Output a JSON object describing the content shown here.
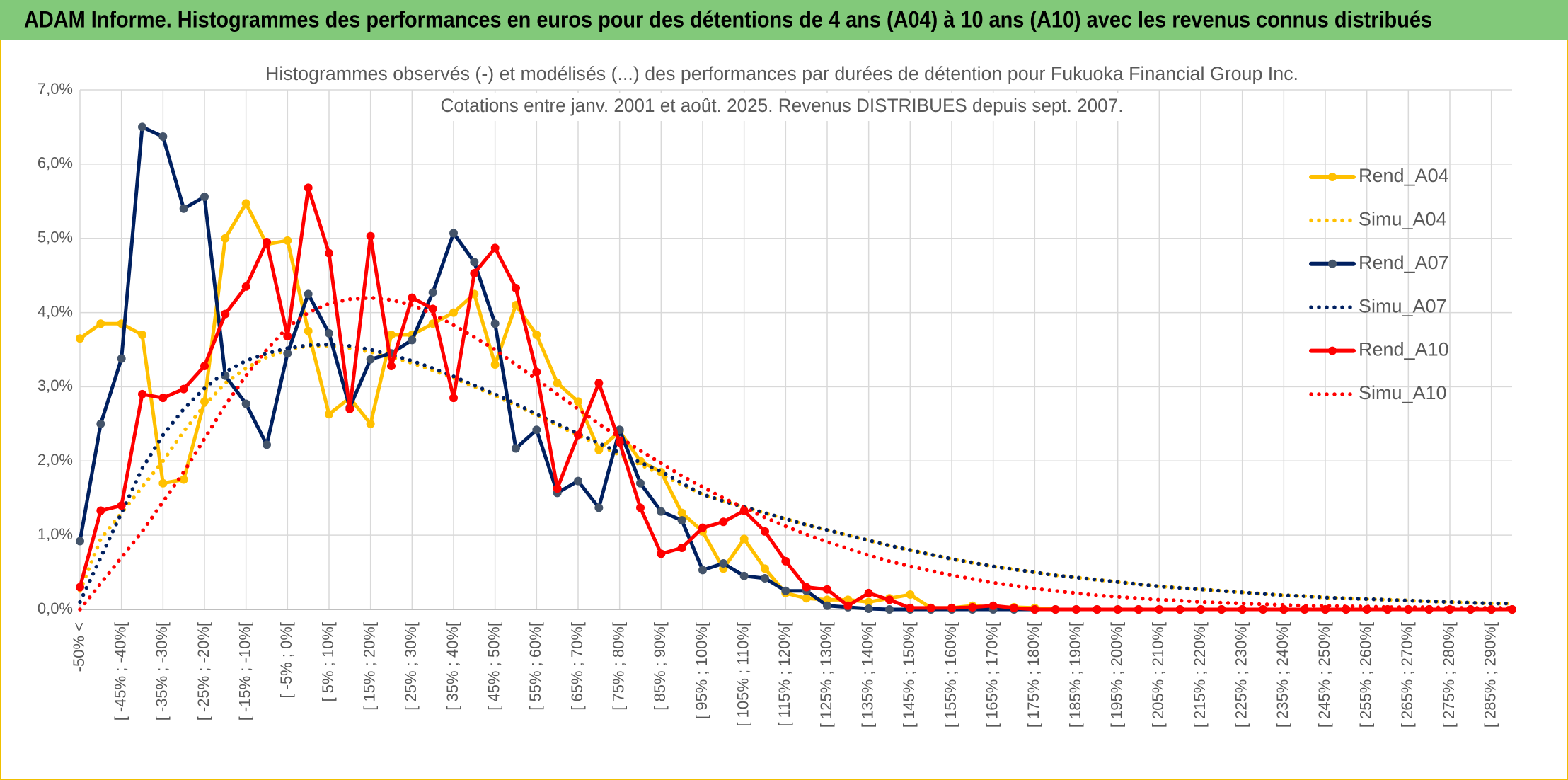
{
  "header": {
    "title": "ADAM Informe. Histogrammes des performances en euros pour des détentions de 4 ans (A04) à 10 ans (A10) avec les revenus connus distribués"
  },
  "chart_data": {
    "type": "line",
    "title": "Histogrammes observés (-) et modélisés (...) des performances par durées de détention pour Fukuoka Financial Group Inc.",
    "subtitle": "Cotations entre janv. 2001 et août. 2025. Revenus DISTRIBUES depuis sept. 2007.",
    "categories": [
      "-50% <",
      null,
      "[ -45% ; -40%[",
      null,
      "[ -35% ; -30%[",
      null,
      "[ -25% ; -20%[",
      null,
      "[ -15% ; -10%[",
      null,
      "[ -5% ; 0%[",
      null,
      "[ 5% ; 10%[",
      null,
      "[ 15% ; 20%[",
      null,
      "[ 25% ; 30%[",
      null,
      "[ 35% ; 40%[",
      null,
      "[ 45% ; 50%[",
      null,
      "[ 55% ; 60%[",
      null,
      "[ 65% ; 70%[",
      null,
      "[ 75% ; 80%[",
      null,
      "[ 85% ; 90%[",
      null,
      "[ 95% ; 100%[",
      null,
      "[ 105% ; 110%[",
      null,
      "[ 115% ; 120%[",
      null,
      "[ 125% ; 130%[",
      null,
      "[ 135% ; 140%[",
      null,
      "[ 145% ; 150%[",
      null,
      "[ 155% ; 160%[",
      null,
      "[ 165% ; 170%[",
      null,
      "[ 175% ; 180%[",
      null,
      "[ 185% ; 190%[",
      null,
      "[ 195% ; 200%[",
      null,
      "[ 205% ; 210%[",
      null,
      "[ 215% ; 220%[",
      null,
      "[ 225% ; 230%[",
      null,
      "[ 235% ; 240%[",
      null,
      "[ 245% ; 250%[",
      null,
      "[ 255% ; 260%[",
      null,
      "[ 265% ; 270%[",
      null,
      "[ 275% ; 280%[",
      null,
      "[ 285% ; 290%[",
      null
    ],
    "ylim": [
      0,
      7
    ],
    "yticks": [
      {
        "value": 0,
        "label": "0,0%"
      },
      {
        "value": 1,
        "label": "1,0%"
      },
      {
        "value": 2,
        "label": "2,0%"
      },
      {
        "value": 3,
        "label": "3,0%"
      },
      {
        "value": 4,
        "label": "4,0%"
      },
      {
        "value": 5,
        "label": "5,0%"
      },
      {
        "value": 6,
        "label": "6,0%"
      },
      {
        "value": 7,
        "label": "7,0%"
      }
    ],
    "grid": true,
    "series": [
      {
        "name": "Rend_A04",
        "color": "#ffc000",
        "line_style": "solid",
        "values": [
          3.65,
          3.85,
          3.85,
          3.7,
          1.7,
          1.75,
          2.8,
          5.0,
          5.47,
          4.92,
          4.97,
          3.75,
          2.63,
          2.85,
          2.5,
          3.7,
          3.7,
          3.85,
          4.0,
          4.25,
          3.3,
          4.1,
          3.7,
          3.05,
          2.8,
          2.15,
          2.4,
          2.0,
          1.85,
          1.3,
          1.05,
          0.55,
          0.95,
          0.55,
          0.22,
          0.15,
          0.13,
          0.13,
          0.1,
          0.15,
          0.2,
          0.02,
          0.02,
          0.05,
          0.03,
          0.03,
          0.02,
          0,
          0,
          0,
          0,
          0,
          0,
          0,
          0,
          0,
          0,
          0,
          0,
          0,
          0,
          0,
          0,
          0,
          0,
          0,
          0,
          0,
          0,
          0
        ]
      },
      {
        "name": "Simu_A04",
        "color": "#ffc000",
        "line_style": "dotted",
        "values": [
          0.25,
          0.95,
          1.3,
          1.65,
          2.0,
          2.4,
          2.75,
          3.05,
          3.25,
          3.4,
          3.5,
          3.55,
          3.55,
          3.52,
          3.47,
          3.4,
          3.32,
          3.22,
          3.12,
          3.0,
          2.88,
          2.75,
          2.62,
          2.48,
          2.35,
          2.22,
          2.08,
          1.95,
          1.82,
          1.68,
          1.55,
          1.46,
          1.38,
          1.3,
          1.22,
          1.14,
          1.07,
          1.0,
          0.93,
          0.86,
          0.8,
          0.74,
          0.68,
          0.63,
          0.58,
          0.54,
          0.5,
          0.46,
          0.43,
          0.4,
          0.37,
          0.34,
          0.31,
          0.29,
          0.27,
          0.25,
          0.23,
          0.21,
          0.19,
          0.18,
          0.16,
          0.15,
          0.14,
          0.13,
          0.12,
          0.11,
          0.1,
          0.09,
          0.08,
          0.08
        ]
      },
      {
        "name": "Rend_A07",
        "color": "#002060",
        "line_style": "solid",
        "values": [
          0.92,
          2.5,
          3.38,
          6.5,
          6.37,
          5.4,
          5.56,
          3.15,
          2.77,
          2.22,
          3.45,
          4.25,
          3.72,
          2.72,
          3.37,
          3.45,
          3.63,
          4.27,
          5.07,
          4.68,
          3.85,
          2.17,
          2.42,
          1.57,
          1.73,
          1.37,
          2.42,
          1.7,
          1.32,
          1.2,
          0.53,
          0.62,
          0.45,
          0.42,
          0.25,
          0.25,
          0.05,
          0.03,
          0.01,
          0,
          0,
          0,
          0,
          0,
          0,
          0,
          0,
          0,
          0,
          0,
          0,
          0,
          0,
          0,
          0,
          0,
          0,
          0,
          0,
          0,
          0,
          0,
          0,
          0,
          0,
          0,
          0,
          0,
          0,
          0
        ]
      },
      {
        "name": "Simu_A07",
        "color": "#002060",
        "line_style": "dotted",
        "values": [
          0.1,
          0.7,
          1.3,
          1.9,
          2.35,
          2.7,
          2.98,
          3.2,
          3.35,
          3.45,
          3.52,
          3.56,
          3.57,
          3.55,
          3.5,
          3.43,
          3.35,
          3.25,
          3.14,
          3.02,
          2.9,
          2.77,
          2.63,
          2.5,
          2.37,
          2.24,
          2.11,
          1.98,
          1.86,
          1.7,
          1.55,
          1.46,
          1.38,
          1.3,
          1.22,
          1.14,
          1.07,
          1.0,
          0.93,
          0.86,
          0.8,
          0.74,
          0.68,
          0.63,
          0.58,
          0.54,
          0.5,
          0.46,
          0.43,
          0.4,
          0.37,
          0.34,
          0.31,
          0.29,
          0.27,
          0.25,
          0.23,
          0.21,
          0.19,
          0.18,
          0.16,
          0.15,
          0.14,
          0.13,
          0.12,
          0.11,
          0.1,
          0.09,
          0.08,
          0.08
        ]
      },
      {
        "name": "Rend_A10",
        "color": "#ff0000",
        "line_style": "solid",
        "values": [
          0.3,
          1.33,
          1.4,
          2.9,
          2.85,
          2.97,
          3.28,
          3.98,
          4.35,
          4.95,
          3.68,
          5.68,
          4.8,
          2.7,
          5.03,
          3.28,
          4.2,
          4.05,
          2.85,
          4.53,
          4.87,
          4.33,
          3.2,
          1.63,
          2.35,
          3.05,
          2.25,
          1.37,
          0.75,
          0.83,
          1.1,
          1.18,
          1.33,
          1.05,
          0.65,
          0.3,
          0.27,
          0.05,
          0.22,
          0.13,
          0.02,
          0.02,
          0.02,
          0.03,
          0.05,
          0.02,
          0,
          0,
          0,
          0,
          0,
          0,
          0,
          0,
          0,
          0,
          0,
          0,
          0,
          0,
          0,
          0,
          0,
          0,
          0,
          0,
          0,
          0,
          0,
          0
        ]
      },
      {
        "name": "Simu_A10",
        "color": "#ff0000",
        "line_style": "dotted",
        "values": [
          0.0,
          0.35,
          0.7,
          1.05,
          1.45,
          1.85,
          2.3,
          2.75,
          3.15,
          3.5,
          3.8,
          4.0,
          4.12,
          4.18,
          4.2,
          4.17,
          4.1,
          3.98,
          3.83,
          3.67,
          3.5,
          3.3,
          3.1,
          2.9,
          2.7,
          2.5,
          2.32,
          2.14,
          1.97,
          1.8,
          1.65,
          1.5,
          1.37,
          1.24,
          1.12,
          1.01,
          0.91,
          0.82,
          0.73,
          0.65,
          0.58,
          0.52,
          0.46,
          0.41,
          0.36,
          0.32,
          0.28,
          0.25,
          0.22,
          0.19,
          0.17,
          0.15,
          0.13,
          0.12,
          0.1,
          0.09,
          0.08,
          0.07,
          0.06,
          0.05,
          0.05,
          0.04,
          0.04,
          0.03,
          0.03,
          0.03,
          0.02,
          0.02,
          0.02,
          0.02
        ]
      }
    ]
  }
}
